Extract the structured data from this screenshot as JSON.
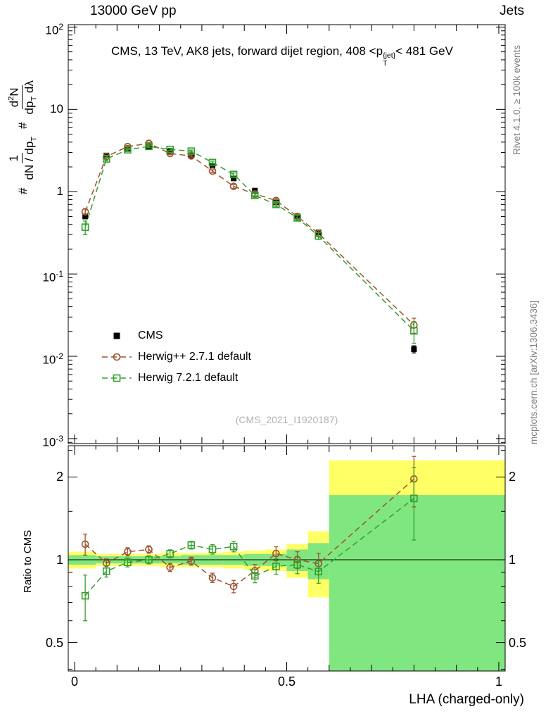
{
  "header": {
    "left": "13000 GeV pp",
    "right": "Jets"
  },
  "panel_title": {
    "pre": "CMS, 13 TeV, AK8 jets, forward dijet region, 408 <p",
    "sup": "{jet}",
    "sub": "T",
    "post": "< 481 GeV"
  },
  "y_axis_title": {
    "hash1": "#",
    "frac1": {
      "num": "1",
      "den_pre": "dN / dp",
      "den_sub": "T"
    },
    "hash2": "#",
    "frac2": {
      "num_pre": "d",
      "num_sup": "2",
      "num_post": "N",
      "den_pre": "dp",
      "den_sub": "T",
      "den_post": " dλ"
    }
  },
  "ratio_axis_title": "Ratio to CMS",
  "x_axis_title": "LHA (charged-only)",
  "watermark": "(CMS_2021_I1920187)",
  "side_notes": {
    "top_right": "Rivet 4.1.0, ≥ 100k events",
    "bottom_right": "mcplots.cern.ch [arXiv:1306.3436]"
  },
  "legend": {
    "items": [
      {
        "label": "CMS",
        "marker": "square-filled",
        "color": "#000000",
        "line": "none"
      },
      {
        "label": "Herwig++ 2.7.1 default",
        "marker": "circle-open",
        "color": "#a0522d",
        "line": "dashed"
      },
      {
        "label": "Herwig 7.2.1 default",
        "marker": "square-open",
        "color": "#33a02c",
        "line": "dashed"
      }
    ]
  },
  "chart_data": {
    "type": "line",
    "title": "CMS, 13 TeV, AK8 jets, forward dijet region, 408 < pT{jet} < 481 GeV",
    "xlabel": "LHA (charged-only)",
    "ylabel": "1/(dN/dpT) d²N/(dpT dλ)",
    "ratio_label": "Ratio to CMS",
    "x_bin_centers": [
      0.025,
      0.075,
      0.125,
      0.175,
      0.225,
      0.275,
      0.325,
      0.375,
      0.425,
      0.475,
      0.525,
      0.575,
      0.8
    ],
    "x_bin_edges": [
      0,
      0.05,
      0.1,
      0.15,
      0.2,
      0.25,
      0.3,
      0.35,
      0.4,
      0.45,
      0.5,
      0.55,
      0.6,
      1.0
    ],
    "series": [
      {
        "name": "CMS",
        "marker": "square-filled",
        "color": "#000000",
        "line": "none",
        "values": [
          0.5,
          2.75,
          3.3,
          3.55,
          3.1,
          2.75,
          2.07,
          1.45,
          1.03,
          0.74,
          0.5,
          0.32,
          0.0122
        ],
        "errors": [
          0.025,
          0.1,
          0.1,
          0.1,
          0.1,
          0.09,
          0.07,
          0.05,
          0.04,
          0.03,
          0.025,
          0.02,
          0.0012
        ]
      },
      {
        "name": "Herwig++ 2.7.1 default",
        "marker": "circle-open",
        "color": "#a0522d",
        "line": "dashed",
        "values": [
          0.57,
          2.67,
          3.53,
          3.87,
          2.91,
          2.72,
          1.78,
          1.16,
          0.94,
          0.78,
          0.5,
          0.31,
          0.024
        ],
        "errors": [
          0.05,
          0.1,
          0.12,
          0.12,
          0.1,
          0.09,
          0.07,
          0.06,
          0.05,
          0.045,
          0.035,
          0.028,
          0.005
        ]
      },
      {
        "name": "Herwig 7.2.1 default",
        "marker": "square-open",
        "color": "#33a02c",
        "line": "dashed",
        "values": [
          0.37,
          2.5,
          3.23,
          3.55,
          3.26,
          3.11,
          2.26,
          1.62,
          0.9,
          0.7,
          0.48,
          0.29,
          0.0204
        ],
        "errors": [
          0.07,
          0.12,
          0.12,
          0.12,
          0.11,
          0.1,
          0.09,
          0.07,
          0.05,
          0.045,
          0.035,
          0.027,
          0.006
        ]
      }
    ],
    "main_axis": {
      "scale": "log",
      "min": 0.00087,
      "max": 107,
      "ticks": [
        {
          "v": 100,
          "base": "10",
          "exp": "2"
        },
        {
          "v": 10,
          "base": "10",
          "exp": ""
        },
        {
          "v": 1,
          "base": "1",
          "exp": ""
        },
        {
          "v": 0.1,
          "base": "10",
          "exp": "-1"
        },
        {
          "v": 0.01,
          "base": "10",
          "exp": "-2"
        },
        {
          "v": 0.001,
          "base": "10",
          "exp": "-3"
        }
      ]
    },
    "ratio_axis": {
      "scale": "log",
      "min": 0.394,
      "max": 2.6,
      "ref": 1,
      "ticks": [
        {
          "v": 2,
          "label": "2"
        },
        {
          "v": 1,
          "label": "1"
        },
        {
          "v": 0.5,
          "label": "0.5"
        }
      ],
      "minor_ticks": [
        0.4,
        0.6,
        0.7,
        0.8,
        0.9,
        1.5,
        2.5
      ]
    },
    "x_axis": {
      "min": -0.015,
      "max": 1.015,
      "minor_step": 0.05,
      "ticks": [
        {
          "v": 0,
          "label": "0"
        },
        {
          "v": 0.5,
          "label": "0.5"
        },
        {
          "v": 1,
          "label": "1"
        }
      ]
    },
    "ratio_bands": {
      "yellow_color": "#ffff66",
      "green_color": "#80e680",
      "bins": [
        {
          "x1": 0.0,
          "x2": 0.05,
          "yellow": [
            0.93,
            1.07
          ],
          "green": [
            0.96,
            1.04
          ]
        },
        {
          "x1": 0.05,
          "x2": 0.1,
          "yellow": [
            0.95,
            1.05
          ],
          "green": [
            0.97,
            1.03
          ]
        },
        {
          "x1": 0.1,
          "x2": 0.15,
          "yellow": [
            0.95,
            1.05
          ],
          "green": [
            0.97,
            1.03
          ]
        },
        {
          "x1": 0.15,
          "x2": 0.2,
          "yellow": [
            0.95,
            1.05
          ],
          "green": [
            0.97,
            1.03
          ]
        },
        {
          "x1": 0.2,
          "x2": 0.25,
          "yellow": [
            0.94,
            1.06
          ],
          "green": [
            0.97,
            1.03
          ]
        },
        {
          "x1": 0.25,
          "x2": 0.3,
          "yellow": [
            0.94,
            1.06
          ],
          "green": [
            0.96,
            1.04
          ]
        },
        {
          "x1": 0.3,
          "x2": 0.35,
          "yellow": [
            0.94,
            1.06
          ],
          "green": [
            0.96,
            1.04
          ]
        },
        {
          "x1": 0.35,
          "x2": 0.4,
          "yellow": [
            0.93,
            1.07
          ],
          "green": [
            0.96,
            1.04
          ]
        },
        {
          "x1": 0.4,
          "x2": 0.45,
          "yellow": [
            0.92,
            1.08
          ],
          "green": [
            0.95,
            1.05
          ]
        },
        {
          "x1": 0.45,
          "x2": 0.5,
          "yellow": [
            0.91,
            1.09
          ],
          "green": [
            0.95,
            1.05
          ]
        },
        {
          "x1": 0.5,
          "x2": 0.55,
          "yellow": [
            0.86,
            1.14
          ],
          "green": [
            0.91,
            1.09
          ]
        },
        {
          "x1": 0.55,
          "x2": 0.6,
          "yellow": [
            0.73,
            1.27
          ],
          "green": [
            0.85,
            1.15
          ]
        },
        {
          "x1": 0.6,
          "x2": 1.0,
          "yellow": [
            0.3,
            2.3
          ],
          "green": [
            0.3,
            1.72
          ]
        }
      ]
    }
  }
}
